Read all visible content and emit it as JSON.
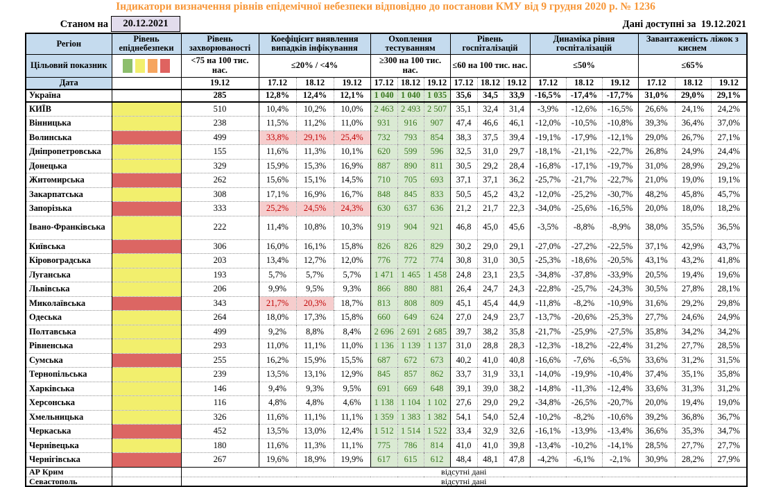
{
  "title": "Індикатори визначення рівнів епідемічної небезпеки відповідно до постанови КМУ від 9 грудня 2020 р. № 1236",
  "meta": {
    "as_of_label": "Станом на",
    "as_of_date": "20.12.2021",
    "available_label": "Дані доступні за",
    "available_date": "19.12.2021"
  },
  "colors": {
    "header_bg": "#C5DBEE",
    "lavender": "#E2DCEC",
    "title_orange": "#F79637",
    "level_yellow": "#F2EF6D",
    "level_red": "#DC6663",
    "pink_bg": "#F6CDCD",
    "pink_text": "#C00000",
    "green_bg": "#DAEAD3",
    "green_text": "#38761D",
    "legend": [
      "#8DBE6C",
      "#F2EF6E",
      "#F6A55F",
      "#DF6360"
    ]
  },
  "header": {
    "col1": {
      "r1": "Регіон",
      "r2": "Цільовий показник",
      "r3": "Дата"
    },
    "groups": [
      {
        "title": "Рівень епіднебезпеки",
        "target": "",
        "dates": []
      },
      {
        "title": "Рівень захворюваності",
        "target": "<75 на 100 тис. нас.",
        "dates": [
          "19.12"
        ]
      },
      {
        "title": "Коефіцієнт виявлення випадків інфікування",
        "target": "≤20% / <4%",
        "dates": [
          "17.12",
          "18.12",
          "19.12"
        ]
      },
      {
        "title": "Охоплення тестуванням",
        "target": "≥300 на 100 тис. нас.",
        "dates": [
          "17.12",
          "18.12",
          "19.12"
        ]
      },
      {
        "title": "Рівень госпіталізацій",
        "target": "≤60 на 100 тис. нас.",
        "dates": [
          "17.12",
          "18.12",
          "19.12"
        ]
      },
      {
        "title": "Динаміка рівня госпіталізацій",
        "target": "≤50%",
        "dates": [
          "17.12",
          "18.12",
          "19.12"
        ]
      },
      {
        "title": "Завантаженість ліжок з киснем",
        "target": "≤65%",
        "dates": [
          "17.12",
          "18.12",
          "19.12"
        ]
      }
    ]
  },
  "rows": [
    {
      "name": "Україна",
      "level": "none",
      "bold": true,
      "incidence": "285",
      "detection": [
        "12,8%",
        "12,4%",
        "12,1%"
      ],
      "hl": [],
      "testing": [
        "1 040",
        "1 040",
        "1 035"
      ],
      "hosp": [
        "35,6",
        "34,5",
        "33,9"
      ],
      "dynamics": [
        "-16,5%",
        "-17,4%",
        "-17,7%"
      ],
      "beds": [
        "31,0%",
        "29,0%",
        "29,1%"
      ]
    },
    {
      "name": "КИЇВ",
      "level": "yellow",
      "incidence": "510",
      "detection": [
        "10,4%",
        "10,2%",
        "10,0%"
      ],
      "hl": [],
      "testing": [
        "2 463",
        "2 493",
        "2 507"
      ],
      "hosp": [
        "35,1",
        "32,4",
        "31,4"
      ],
      "dynamics": [
        "-3,9%",
        "-12,6%",
        "-16,5%"
      ],
      "beds": [
        "26,6%",
        "24,1%",
        "24,2%"
      ]
    },
    {
      "name": "Вінницька",
      "level": "yellow",
      "incidence": "238",
      "detection": [
        "11,5%",
        "11,2%",
        "11,0%"
      ],
      "hl": [],
      "testing": [
        "931",
        "916",
        "907"
      ],
      "hosp": [
        "47,4",
        "46,6",
        "46,1"
      ],
      "dynamics": [
        "-12,0%",
        "-10,5%",
        "-10,8%"
      ],
      "beds": [
        "39,3%",
        "36,4%",
        "37,0%"
      ]
    },
    {
      "name": "Волинська",
      "level": "red",
      "incidence": "499",
      "detection": [
        "33,8%",
        "29,1%",
        "25,4%"
      ],
      "hl": [
        0,
        1,
        2
      ],
      "testing": [
        "732",
        "793",
        "854"
      ],
      "hosp": [
        "38,3",
        "37,5",
        "39,4"
      ],
      "dynamics": [
        "-19,1%",
        "-17,9%",
        "-12,1%"
      ],
      "beds": [
        "29,0%",
        "26,7%",
        "27,1%"
      ]
    },
    {
      "name": "Дніпропетровська",
      "level": "yellow",
      "incidence": "155",
      "detection": [
        "11,6%",
        "11,3%",
        "10,1%"
      ],
      "hl": [],
      "testing": [
        "620",
        "599",
        "596"
      ],
      "hosp": [
        "32,5",
        "31,0",
        "29,7"
      ],
      "dynamics": [
        "-18,1%",
        "-21,1%",
        "-22,7%"
      ],
      "beds": [
        "26,8%",
        "24,9%",
        "24,4%"
      ]
    },
    {
      "name": "Донецька",
      "level": "yellow",
      "incidence": "329",
      "detection": [
        "15,9%",
        "15,3%",
        "16,9%"
      ],
      "hl": [],
      "testing": [
        "887",
        "890",
        "811"
      ],
      "hosp": [
        "30,5",
        "29,2",
        "28,4"
      ],
      "dynamics": [
        "-16,8%",
        "-17,1%",
        "-19,7%"
      ],
      "beds": [
        "31,0%",
        "28,9%",
        "29,2%"
      ]
    },
    {
      "name": "Житомирська",
      "level": "red",
      "incidence": "262",
      "detection": [
        "15,6%",
        "15,1%",
        "14,5%"
      ],
      "hl": [],
      "testing": [
        "710",
        "705",
        "693"
      ],
      "hosp": [
        "37,1",
        "37,1",
        "36,2"
      ],
      "dynamics": [
        "-25,7%",
        "-21,7%",
        "-22,7%"
      ],
      "beds": [
        "21,0%",
        "19,0%",
        "19,1%"
      ]
    },
    {
      "name": "Закарпатська",
      "level": "yellow",
      "incidence": "308",
      "detection": [
        "17,1%",
        "16,9%",
        "16,7%"
      ],
      "hl": [],
      "testing": [
        "848",
        "845",
        "833"
      ],
      "hosp": [
        "50,5",
        "45,2",
        "43,2"
      ],
      "dynamics": [
        "-12,0%",
        "-25,2%",
        "-30,7%"
      ],
      "beds": [
        "48,2%",
        "45,8%",
        "45,7%"
      ]
    },
    {
      "name": "Запорізька",
      "level": "red",
      "incidence": "333",
      "detection": [
        "25,2%",
        "24,5%",
        "24,3%"
      ],
      "hl": [
        0,
        1,
        2
      ],
      "testing": [
        "630",
        "637",
        "636"
      ],
      "hosp": [
        "21,2",
        "21,7",
        "22,3"
      ],
      "dynamics": [
        "-34,0%",
        "-25,6%",
        "-16,5%"
      ],
      "beds": [
        "20,0%",
        "18,0%",
        "18,2%"
      ]
    },
    {
      "name": "Івано-Франківська",
      "level": "yellow",
      "tall": true,
      "incidence": "222",
      "detection": [
        "11,4%",
        "10,8%",
        "10,3%"
      ],
      "hl": [],
      "testing": [
        "919",
        "904",
        "921"
      ],
      "hosp": [
        "46,8",
        "45,0",
        "45,6"
      ],
      "dynamics": [
        "-3,5%",
        "-8,8%",
        "-8,9%"
      ],
      "beds": [
        "38,0%",
        "35,5%",
        "36,5%"
      ]
    },
    {
      "name": "Київська",
      "level": "red",
      "incidence": "306",
      "detection": [
        "16,0%",
        "16,1%",
        "15,8%"
      ],
      "hl": [],
      "testing": [
        "826",
        "826",
        "829"
      ],
      "hosp": [
        "30,2",
        "29,0",
        "29,1"
      ],
      "dynamics": [
        "-27,0%",
        "-27,2%",
        "-22,5%"
      ],
      "beds": [
        "37,1%",
        "42,9%",
        "43,7%"
      ]
    },
    {
      "name": "Кіровоградська",
      "level": "yellow",
      "incidence": "203",
      "detection": [
        "13,4%",
        "12,7%",
        "12,0%"
      ],
      "hl": [],
      "testing": [
        "776",
        "772",
        "774"
      ],
      "hosp": [
        "30,8",
        "31,0",
        "30,5"
      ],
      "dynamics": [
        "-25,3%",
        "-18,6%",
        "-20,5%"
      ],
      "beds": [
        "43,1%",
        "43,2%",
        "41,8%"
      ]
    },
    {
      "name": "Луганська",
      "level": "yellow",
      "incidence": "193",
      "detection": [
        "5,7%",
        "5,7%",
        "5,7%"
      ],
      "hl": [],
      "testing": [
        "1 471",
        "1 465",
        "1 458"
      ],
      "hosp": [
        "24,8",
        "23,1",
        "23,5"
      ],
      "dynamics": [
        "-34,8%",
        "-37,8%",
        "-33,9%"
      ],
      "beds": [
        "20,5%",
        "19,4%",
        "19,6%"
      ]
    },
    {
      "name": "Львівська",
      "level": "yellow",
      "incidence": "206",
      "detection": [
        "9,9%",
        "9,5%",
        "9,3%"
      ],
      "hl": [],
      "testing": [
        "866",
        "880",
        "881"
      ],
      "hosp": [
        "26,4",
        "24,7",
        "24,3"
      ],
      "dynamics": [
        "-22,8%",
        "-25,7%",
        "-24,3%"
      ],
      "beds": [
        "30,5%",
        "27,8%",
        "28,1%"
      ]
    },
    {
      "name": "Миколаївська",
      "level": "red",
      "incidence": "343",
      "detection": [
        "21,7%",
        "20,3%",
        "18,7%"
      ],
      "hl": [
        0,
        1
      ],
      "testing": [
        "813",
        "808",
        "809"
      ],
      "hosp": [
        "45,1",
        "45,4",
        "44,9"
      ],
      "dynamics": [
        "-11,8%",
        "-8,2%",
        "-10,9%"
      ],
      "beds": [
        "31,6%",
        "29,2%",
        "29,8%"
      ]
    },
    {
      "name": "Одеська",
      "level": "yellow",
      "incidence": "264",
      "detection": [
        "18,0%",
        "17,3%",
        "15,8%"
      ],
      "hl": [],
      "testing": [
        "660",
        "649",
        "624"
      ],
      "hosp": [
        "27,0",
        "24,9",
        "23,7"
      ],
      "dynamics": [
        "-13,7%",
        "-20,6%",
        "-25,3%"
      ],
      "beds": [
        "27,7%",
        "24,6%",
        "24,9%"
      ]
    },
    {
      "name": "Полтавська",
      "level": "yellow",
      "incidence": "499",
      "detection": [
        "9,2%",
        "8,8%",
        "8,4%"
      ],
      "hl": [],
      "testing": [
        "2 696",
        "2 691",
        "2 685"
      ],
      "hosp": [
        "39,7",
        "38,2",
        "35,8"
      ],
      "dynamics": [
        "-21,7%",
        "-25,9%",
        "-27,5%"
      ],
      "beds": [
        "35,8%",
        "34,2%",
        "34,2%"
      ]
    },
    {
      "name": "Рівненська",
      "level": "yellow",
      "incidence": "293",
      "detection": [
        "11,0%",
        "11,1%",
        "11,0%"
      ],
      "hl": [],
      "testing": [
        "1 136",
        "1 139",
        "1 137"
      ],
      "hosp": [
        "31,0",
        "28,8",
        "28,3"
      ],
      "dynamics": [
        "-12,3%",
        "-18,2%",
        "-22,4%"
      ],
      "beds": [
        "31,2%",
        "27,7%",
        "28,5%"
      ]
    },
    {
      "name": "Сумська",
      "level": "red",
      "incidence": "255",
      "detection": [
        "16,2%",
        "15,9%",
        "15,5%"
      ],
      "hl": [],
      "testing": [
        "687",
        "672",
        "673"
      ],
      "hosp": [
        "40,2",
        "41,0",
        "40,8"
      ],
      "dynamics": [
        "-16,6%",
        "-7,6%",
        "-6,5%"
      ],
      "beds": [
        "33,6%",
        "31,2%",
        "31,5%"
      ]
    },
    {
      "name": "Тернопільська",
      "level": "yellow",
      "incidence": "239",
      "detection": [
        "13,5%",
        "13,1%",
        "12,9%"
      ],
      "hl": [],
      "testing": [
        "845",
        "857",
        "862"
      ],
      "hosp": [
        "33,7",
        "31,9",
        "33,1"
      ],
      "dynamics": [
        "-14,0%",
        "-19,9%",
        "-10,4%"
      ],
      "beds": [
        "37,4%",
        "35,1%",
        "35,8%"
      ]
    },
    {
      "name": "Харківська",
      "level": "yellow",
      "incidence": "146",
      "detection": [
        "9,4%",
        "9,3%",
        "9,5%"
      ],
      "hl": [],
      "testing": [
        "691",
        "669",
        "648"
      ],
      "hosp": [
        "39,1",
        "39,0",
        "38,2"
      ],
      "dynamics": [
        "-14,8%",
        "-11,3%",
        "-12,4%"
      ],
      "beds": [
        "33,6%",
        "31,3%",
        "31,2%"
      ]
    },
    {
      "name": "Херсонська",
      "level": "yellow",
      "incidence": "116",
      "detection": [
        "4,8%",
        "4,8%",
        "4,6%"
      ],
      "hl": [],
      "testing": [
        "1 138",
        "1 104",
        "1 102"
      ],
      "hosp": [
        "27,6",
        "29,0",
        "29,2"
      ],
      "dynamics": [
        "-34,8%",
        "-26,5%",
        "-20,7%"
      ],
      "beds": [
        "20,0%",
        "19,4%",
        "19,0%"
      ]
    },
    {
      "name": "Хмельницька",
      "level": "yellow",
      "incidence": "326",
      "detection": [
        "11,6%",
        "11,1%",
        "11,1%"
      ],
      "hl": [],
      "testing": [
        "1 359",
        "1 383",
        "1 382"
      ],
      "hosp": [
        "54,1",
        "54,0",
        "52,4"
      ],
      "dynamics": [
        "-10,2%",
        "-8,2%",
        "-10,6%"
      ],
      "beds": [
        "39,2%",
        "36,8%",
        "36,7%"
      ]
    },
    {
      "name": "Черкаська",
      "level": "red",
      "incidence": "452",
      "detection": [
        "13,5%",
        "13,0%",
        "12,4%"
      ],
      "hl": [],
      "testing": [
        "1 512",
        "1 514",
        "1 522"
      ],
      "hosp": [
        "33,4",
        "32,9",
        "32,6"
      ],
      "dynamics": [
        "-16,1%",
        "-13,9%",
        "-13,4%"
      ],
      "beds": [
        "36,6%",
        "35,3%",
        "34,7%"
      ]
    },
    {
      "name": "Чернівецька",
      "level": "yellow",
      "incidence": "180",
      "detection": [
        "11,6%",
        "11,3%",
        "11,1%"
      ],
      "hl": [],
      "testing": [
        "775",
        "786",
        "814"
      ],
      "hosp": [
        "41,0",
        "41,0",
        "39,8"
      ],
      "dynamics": [
        "-13,4%",
        "-10,2%",
        "-14,1%"
      ],
      "beds": [
        "28,5%",
        "27,7%",
        "27,7%"
      ]
    },
    {
      "name": "Чернігівська",
      "level": "red",
      "incidence": "267",
      "detection": [
        "19,6%",
        "18,9%",
        "19,9%"
      ],
      "hl": [],
      "testing": [
        "617",
        "615",
        "612"
      ],
      "hosp": [
        "48,4",
        "48,1",
        "47,8"
      ],
      "dynamics": [
        "-4,2%",
        "-6,1%",
        "-2,1%"
      ],
      "beds": [
        "30,9%",
        "28,2%",
        "27,9%"
      ]
    }
  ],
  "no_data_rows": [
    {
      "name": "АР Крим",
      "text": "відсутні дані"
    },
    {
      "name": "Севастополь",
      "text": "відсутні дані"
    }
  ]
}
